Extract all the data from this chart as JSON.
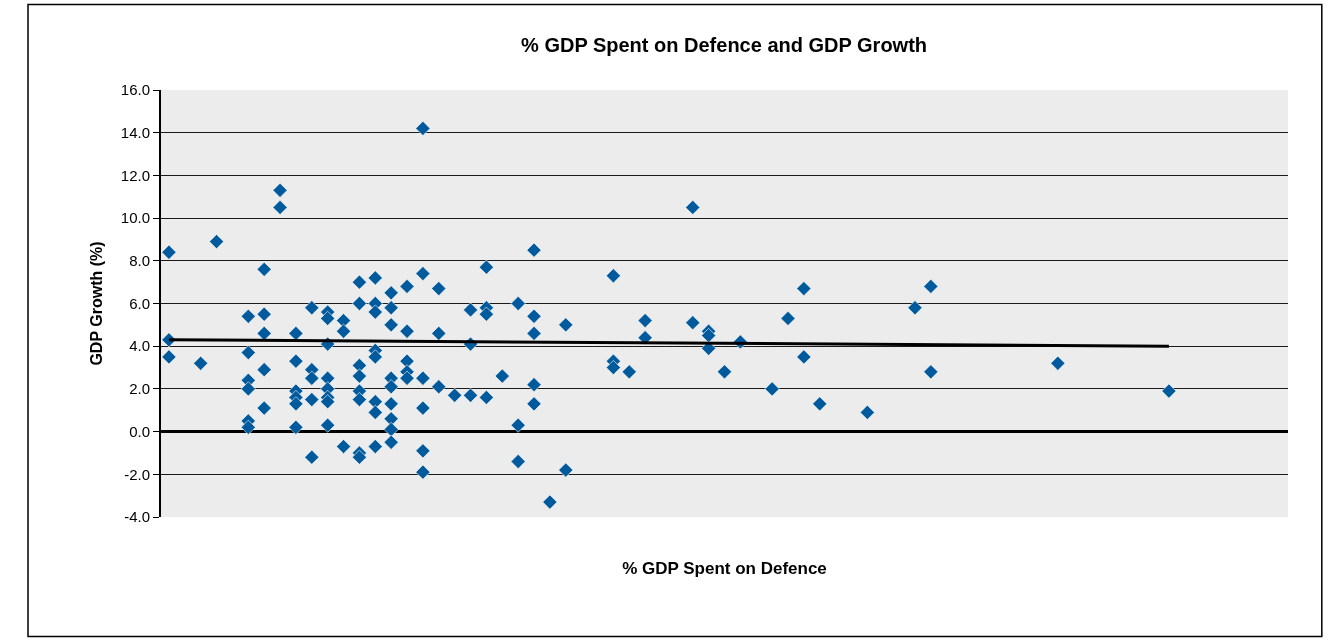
{
  "chart_data": {
    "type": "scatter",
    "title": "% GDP Spent on Defence and GDP Growth",
    "xlabel": "% GDP Spent on Defence",
    "ylabel": "GDP Growth (%)",
    "categories": [
      null,
      null,
      null,
      null,
      null,
      null,
      null,
      null,
      null,
      null,
      null,
      null,
      null,
      null,
      null,
      null,
      null,
      null,
      null,
      null,
      null,
      null,
      null,
      null,
      null,
      null,
      null,
      null,
      null,
      null,
      null,
      null,
      null,
      null,
      null,
      null,
      null,
      null,
      null,
      null,
      null,
      null,
      null,
      null,
      null,
      null,
      null,
      null,
      null,
      null,
      null,
      null,
      null,
      null,
      null,
      null,
      null,
      null,
      null,
      null,
      null,
      null,
      null,
      null,
      null,
      null,
      null,
      null,
      null,
      null,
      null
    ],
    "ylim": [
      -4,
      16
    ],
    "yticks": [
      {
        "value": -4,
        "label": "-4.0"
      },
      {
        "value": -2,
        "label": "-2.0"
      },
      {
        "value": 0,
        "label": "0.0"
      },
      {
        "value": 2,
        "label": "2.0"
      },
      {
        "value": 4,
        "label": "4.0"
      },
      {
        "value": 6,
        "label": "6.0"
      },
      {
        "value": 8,
        "label": "8.0"
      },
      {
        "value": 10,
        "label": "10.0"
      },
      {
        "value": 12,
        "label": "12.0"
      },
      {
        "value": 14,
        "label": "14.0"
      },
      {
        "value": 16,
        "label": "16.0"
      }
    ],
    "grid": "y",
    "marker": "diamond",
    "series": [
      {
        "color": "#005a9c",
        "values": [
          8.4,
          null,
          3.2,
          8.9,
          null,
          5.4,
          7.6,
          11.3,
          4.6,
          5.8,
          5.6,
          5.2,
          7.0,
          7.2,
          6.5,
          6.8,
          14.2,
          6.7,
          1.7,
          5.7,
          7.7,
          2.6,
          6.0,
          8.5,
          -3.3,
          5.0,
          null,
          null,
          7.3,
          2.8,
          5.2,
          null,
          null,
          10.5,
          4.7,
          2.8,
          4.2,
          null,
          2.0,
          5.3,
          6.7,
          1.3,
          null,
          null,
          0.9,
          null,
          null,
          5.8,
          6.8,
          null,
          null,
          null,
          null,
          null,
          null,
          null,
          3.2,
          null,
          null,
          null,
          null,
          null,
          null,
          1.9,
          null,
          null,
          null,
          null,
          null,
          null,
          null
        ]
      },
      {
        "color": "#005a9c",
        "values": [
          4.3,
          null,
          null,
          null,
          null,
          3.7,
          5.5,
          10.5,
          3.3,
          2.9,
          5.3,
          4.7,
          6.0,
          6.0,
          5.8,
          4.7,
          7.4,
          4.6,
          null,
          4.1,
          5.8,
          null,
          0.3,
          5.4,
          null,
          -1.8,
          null,
          null,
          3.3,
          null,
          4.4,
          null,
          null,
          5.1,
          4.5,
          null,
          null,
          null,
          null,
          null,
          3.5,
          null,
          null,
          null,
          null,
          null,
          null,
          null,
          2.8,
          null,
          null,
          null,
          null,
          null,
          null,
          null,
          null,
          null,
          null,
          null,
          null,
          null,
          null,
          null,
          null,
          null,
          null,
          null,
          null,
          null,
          null
        ]
      },
      {
        "color": "#005a9c",
        "values": [
          3.5,
          null,
          null,
          null,
          null,
          2.4,
          4.6,
          null,
          1.9,
          2.5,
          4.1,
          -0.7,
          3.1,
          5.6,
          5.0,
          3.3,
          2.5,
          2.1,
          null,
          1.7,
          5.5,
          null,
          -1.4,
          4.6,
          null,
          null,
          null,
          null,
          3.0,
          null,
          null,
          null,
          null,
          null,
          3.9,
          null,
          null,
          null,
          null,
          null,
          null,
          null,
          null,
          null,
          null,
          null,
          null,
          null,
          null,
          null,
          null,
          null,
          null,
          null,
          null,
          null,
          null,
          null,
          null,
          null,
          null,
          null,
          null,
          null,
          null,
          null,
          null,
          null,
          null,
          null,
          null
        ]
      },
      {
        "color": "#005a9c",
        "values": [
          null,
          null,
          null,
          null,
          null,
          2.0,
          2.9,
          null,
          1.6,
          1.5,
          2.5,
          null,
          2.6,
          3.8,
          2.5,
          2.8,
          1.1,
          null,
          null,
          null,
          1.6,
          null,
          null,
          2.2,
          null,
          null,
          null,
          null,
          null,
          null,
          null,
          null,
          null,
          null,
          null,
          null,
          null,
          null,
          null,
          null,
          null,
          null,
          null,
          null,
          null,
          null,
          null,
          null,
          null,
          null,
          null,
          null,
          null,
          null,
          null,
          null,
          null,
          null,
          null,
          null,
          null,
          null,
          null,
          null,
          null,
          null,
          null,
          null,
          null,
          null,
          null
        ]
      },
      {
        "color": "#005a9c",
        "values": [
          null,
          null,
          null,
          null,
          null,
          0.5,
          1.1,
          null,
          1.3,
          -1.2,
          2.0,
          null,
          1.9,
          3.5,
          2.1,
          2.5,
          -0.9,
          null,
          null,
          null,
          null,
          null,
          null,
          1.3,
          null,
          null,
          null,
          null,
          null,
          null,
          null,
          null,
          null,
          null,
          null,
          null,
          null,
          null,
          null,
          null,
          null,
          null,
          null,
          null,
          null,
          null,
          null,
          null,
          null,
          null,
          null,
          null,
          null,
          null,
          null,
          null,
          null,
          null,
          null,
          null,
          null,
          null,
          null,
          null,
          null,
          null,
          null,
          null,
          null,
          null,
          null
        ]
      },
      {
        "color": "#005a9c",
        "values": [
          null,
          null,
          null,
          null,
          null,
          0.2,
          null,
          null,
          0.2,
          null,
          1.6,
          null,
          1.5,
          1.4,
          1.3,
          null,
          -1.9,
          null,
          null,
          null,
          null,
          null,
          null,
          null,
          null,
          null,
          null,
          null,
          null,
          null,
          null,
          null,
          null,
          null,
          null,
          null,
          null,
          null,
          null,
          null,
          null,
          null,
          null,
          null,
          null,
          null,
          null,
          null,
          null,
          null,
          null,
          null,
          null,
          null,
          null,
          null,
          null,
          null,
          null,
          null,
          null,
          null,
          null,
          null,
          null,
          null,
          null,
          null,
          null,
          null,
          null
        ]
      },
      {
        "color": "#005a9c",
        "values": [
          null,
          null,
          null,
          null,
          null,
          null,
          null,
          null,
          null,
          null,
          1.4,
          null,
          -1.0,
          0.9,
          0.6,
          null,
          null,
          null,
          null,
          null,
          null,
          null,
          null,
          null,
          null,
          null,
          null,
          null,
          null,
          null,
          null,
          null,
          null,
          null,
          null,
          null,
          null,
          null,
          null,
          null,
          null,
          null,
          null,
          null,
          null,
          null,
          null,
          null,
          null,
          null,
          null,
          null,
          null,
          null,
          null,
          null,
          null,
          null,
          null,
          null,
          null,
          null,
          null,
          null,
          null,
          null,
          null,
          null,
          null,
          null,
          null
        ]
      },
      {
        "color": "#005a9c",
        "values": [
          null,
          null,
          null,
          null,
          null,
          null,
          null,
          null,
          null,
          null,
          0.3,
          null,
          -1.2,
          -0.7,
          0.1,
          null,
          null,
          null,
          null,
          null,
          null,
          null,
          null,
          null,
          null,
          null,
          null,
          null,
          null,
          null,
          null,
          null,
          null,
          null,
          null,
          null,
          null,
          null,
          null,
          null,
          null,
          null,
          null,
          null,
          null,
          null,
          null,
          null,
          null,
          null,
          null,
          null,
          null,
          null,
          null,
          null,
          null,
          null,
          null,
          null,
          null,
          null,
          null,
          null,
          null,
          null,
          null,
          null,
          null,
          null,
          null
        ]
      },
      {
        "color": "#005a9c",
        "values": [
          null,
          null,
          null,
          null,
          null,
          null,
          null,
          null,
          null,
          null,
          null,
          null,
          null,
          null,
          -0.5,
          null,
          null,
          null,
          null,
          null,
          null,
          null,
          null,
          null,
          null,
          null,
          null,
          null,
          null,
          null,
          null,
          null,
          null,
          null,
          null,
          null,
          null,
          null,
          null,
          null,
          null,
          null,
          null,
          null,
          null,
          null,
          null,
          null,
          null,
          null,
          null,
          null,
          null,
          null,
          null,
          null,
          null,
          null,
          null,
          null,
          null,
          null,
          null,
          null,
          null,
          null,
          null,
          null,
          null,
          null,
          null
        ]
      },
      {
        "type": "line",
        "color": "#000000",
        "line_style": "solid",
        "marker": "none",
        "values": [
          4.3,
          null,
          null,
          null,
          null,
          null,
          null,
          null,
          null,
          null,
          null,
          null,
          null,
          null,
          null,
          null,
          null,
          null,
          null,
          null,
          null,
          null,
          null,
          null,
          null,
          null,
          null,
          null,
          null,
          null,
          null,
          null,
          null,
          null,
          null,
          null,
          null,
          null,
          null,
          null,
          null,
          null,
          null,
          null,
          null,
          null,
          null,
          null,
          null,
          null,
          null,
          null,
          null,
          null,
          null,
          null,
          null,
          null,
          null,
          null,
          null,
          null,
          null,
          4.0,
          null,
          null,
          null,
          null,
          null,
          null,
          null
        ]
      }
    ]
  }
}
